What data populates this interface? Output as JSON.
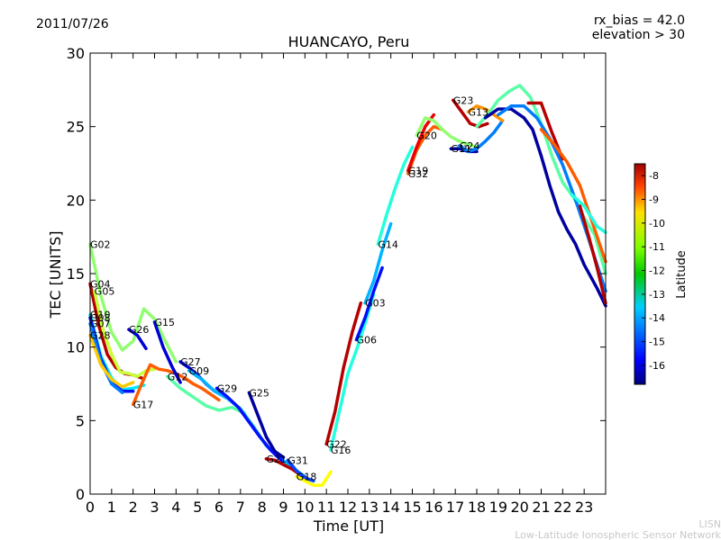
{
  "chart_data": {
    "type": "line",
    "title": "HUANCAYO, Peru",
    "date": "2011/07/26",
    "annotations": [
      "rx_bias = 42.0",
      "elevation > 30"
    ],
    "xlabel": "Time [UT]",
    "ylabel": "TEC [UNITS]",
    "xlim": [
      0,
      24
    ],
    "ylim": [
      0,
      30
    ],
    "xticks": [
      "0",
      "1",
      "2",
      "3",
      "4",
      "5",
      "6",
      "7",
      "8",
      "9",
      "10",
      "11",
      "12",
      "13",
      "14",
      "15",
      "16",
      "17",
      "18",
      "19",
      "20",
      "21",
      "22",
      "23"
    ],
    "yticks": [
      "0",
      "5",
      "10",
      "15",
      "20",
      "25",
      "30"
    ],
    "colorbar": {
      "label": "Latitude",
      "range": [
        -16.8,
        -7.5
      ],
      "ticks": [
        "-8",
        "-9",
        "-10",
        "-11",
        "-12",
        "-13",
        "-14",
        "-15",
        "-16"
      ]
    },
    "footer": [
      "LISN",
      "Low-Latitude Ionospheric Sensor Network"
    ],
    "series": [
      {
        "name": "G02",
        "lat": -12.0,
        "x": [
          0,
          0.5,
          1,
          1.5,
          2,
          2.5,
          3,
          3.5,
          4
        ],
        "y": [
          17.0,
          13.5,
          11.0,
          9.8,
          10.4,
          12.6,
          11.9,
          10.4,
          9.0
        ]
      },
      {
        "name": "G04",
        "lat": -8.0,
        "x": [
          0,
          0.4,
          0.8,
          1.2,
          1.6,
          2,
          2.4
        ],
        "y": [
          14.3,
          11.5,
          9.5,
          8.6,
          8.2,
          8.1,
          7.9
        ]
      },
      {
        "name": "G05",
        "lat": -11.5,
        "x": [
          0.2,
          0.6,
          1.0,
          1.4,
          1.8,
          2.2,
          2.6,
          3.0
        ],
        "y": [
          13.8,
          11.2,
          9.5,
          8.3,
          8.2,
          8.0,
          8.4,
          8.5
        ]
      },
      {
        "name": "G10",
        "lat": -13.5,
        "x": [
          0,
          0.5,
          1,
          1.5,
          2,
          2.5
        ],
        "y": [
          12.2,
          9.4,
          7.9,
          7.1,
          7.2,
          7.4
        ]
      },
      {
        "name": "G08",
        "lat": -15.5,
        "x": [
          0,
          0.5,
          1,
          1.5,
          2
        ],
        "y": [
          12.0,
          9.2,
          7.6,
          7.0,
          7.0
        ]
      },
      {
        "name": "G07",
        "lat": -14.5,
        "x": [
          0,
          0.5,
          1,
          1.5
        ],
        "y": [
          11.6,
          9.0,
          7.5,
          6.9
        ]
      },
      {
        "name": "G28",
        "lat": -10.5,
        "x": [
          0,
          0.5,
          1,
          1.5,
          2
        ],
        "y": [
          10.8,
          8.8,
          7.8,
          7.3,
          7.6
        ]
      },
      {
        "name": "G26",
        "lat": -16.0,
        "x": [
          1.8,
          2.2,
          2.6
        ],
        "y": [
          11.2,
          10.8,
          9.9
        ]
      },
      {
        "name": "G17",
        "lat": -9.5,
        "x": [
          2,
          2.4,
          2.8,
          3.2,
          3.6,
          4.0,
          4.4,
          4.8,
          5.2,
          5.6,
          6.0
        ],
        "y": [
          6.1,
          7.5,
          8.8,
          8.5,
          8.4,
          8.2,
          7.9,
          7.5,
          7.2,
          6.8,
          6.4
        ]
      },
      {
        "name": "G15",
        "lat": -16.0,
        "x": [
          3.0,
          3.4,
          3.8,
          4.2
        ],
        "y": [
          11.7,
          10.0,
          8.7,
          7.6
        ]
      },
      {
        "name": "G27",
        "lat": -16.0,
        "x": [
          4.2,
          4.6,
          5.0,
          5.4,
          5.8
        ],
        "y": [
          9.0,
          8.6,
          8.1,
          7.5,
          7.0
        ]
      },
      {
        "name": "G12",
        "lat": -12.5,
        "x": [
          3.6,
          4.2,
          4.8,
          5.4,
          6.0,
          6.6,
          7.2
        ],
        "y": [
          8.0,
          7.2,
          6.6,
          6.0,
          5.7,
          5.9,
          5.5
        ]
      },
      {
        "name": "G09",
        "lat": -14.0,
        "x": [
          4.6,
          5.2,
          5.8,
          6.4,
          7.0,
          7.6,
          8.2,
          8.8,
          9.4,
          10.0
        ],
        "y": [
          8.4,
          7.8,
          7.0,
          6.5,
          5.8,
          4.6,
          3.3,
          2.5,
          1.8,
          1.2
        ]
      },
      {
        "name": "G29",
        "lat": -15.5,
        "x": [
          5.9,
          6.4,
          6.9,
          7.4,
          7.9,
          8.4,
          8.9
        ],
        "y": [
          7.2,
          6.6,
          5.9,
          4.9,
          3.9,
          3.0,
          2.3
        ]
      },
      {
        "name": "G25",
        "lat": -16.5,
        "x": [
          7.4,
          7.8,
          8.2,
          8.6,
          9.0
        ],
        "y": [
          6.9,
          5.4,
          3.9,
          2.9,
          2.5
        ]
      },
      {
        "name": "G21",
        "lat": -8.0,
        "x": [
          8.2,
          8.6,
          9.0,
          9.4,
          9.8,
          10.2
        ],
        "y": [
          2.4,
          2.3,
          2.0,
          1.7,
          1.3,
          1.0
        ]
      },
      {
        "name": "G31",
        "lat": -15.0,
        "x": [
          9.2,
          9.6,
          10.0,
          10.4
        ],
        "y": [
          2.3,
          1.6,
          1.1,
          0.9
        ]
      },
      {
        "name": "G18",
        "lat": -11.0,
        "x": [
          9.6,
          10.0,
          10.4,
          10.8,
          11.2
        ],
        "y": [
          1.2,
          0.9,
          0.6,
          0.6,
          1.5
        ]
      },
      {
        "name": "G22",
        "lat": -8.0,
        "x": [
          11.0,
          11.4,
          11.8,
          12.2,
          12.6
        ],
        "y": [
          3.4,
          5.6,
          8.6,
          11.0,
          13.0
        ]
      },
      {
        "name": "G16",
        "lat": -13.0,
        "x": [
          11.2,
          11.6,
          12.0,
          12.4,
          12.8,
          13.2
        ],
        "y": [
          3.0,
          5.6,
          8.2,
          9.8,
          11.6,
          13.6
        ]
      },
      {
        "name": "G06",
        "lat": -15.5,
        "x": [
          12.4,
          12.8,
          13.2,
          13.6
        ],
        "y": [
          10.5,
          12.0,
          13.8,
          15.4
        ]
      },
      {
        "name": "G03",
        "lat": -14.0,
        "x": [
          12.8,
          13.2,
          13.6,
          14.0
        ],
        "y": [
          13.0,
          14.5,
          16.6,
          18.4
        ]
      },
      {
        "name": "G14",
        "lat": -13.0,
        "x": [
          13.4,
          13.8,
          14.2,
          14.6,
          15.0
        ],
        "y": [
          17.0,
          19.0,
          20.8,
          22.4,
          23.6
        ]
      },
      {
        "name": "G32",
        "lat": -9.5,
        "x": [
          14.8,
          15.2,
          15.6,
          16.0,
          16.4
        ],
        "y": [
          21.8,
          23.4,
          24.4,
          25.0,
          24.8
        ]
      },
      {
        "name": "G19",
        "lat": -8.5,
        "x": [
          14.8,
          15.2,
          15.6,
          16.0
        ],
        "y": [
          22.0,
          23.6,
          25.0,
          25.8
        ]
      },
      {
        "name": "G20",
        "lat": -12.0,
        "x": [
          15.2,
          15.6,
          16.0,
          16.4,
          16.8,
          17.2,
          17.6,
          18.0
        ],
        "y": [
          24.4,
          25.6,
          25.4,
          24.8,
          24.3,
          24.0,
          23.8,
          23.6
        ]
      },
      {
        "name": "G11",
        "lat": -16.5,
        "x": [
          16.8,
          17.2,
          17.6,
          18.0
        ],
        "y": [
          23.5,
          23.5,
          23.3,
          23.3
        ]
      },
      {
        "name": "G24",
        "lat": -14.5,
        "x": [
          17.2,
          17.6,
          18.0,
          18.4,
          18.8,
          19.2
        ],
        "y": [
          23.7,
          23.3,
          23.5,
          24.0,
          24.6,
          25.4
        ]
      },
      {
        "name": "G23",
        "lat": -8.0,
        "x": [
          16.9,
          17.3,
          17.7,
          18.1,
          18.5
        ],
        "y": [
          26.8,
          26.0,
          25.2,
          25.0,
          25.2
        ]
      },
      {
        "name": "G13",
        "lat": -10.0,
        "x": [
          17.6,
          18.0,
          18.4,
          18.8,
          19.2
        ],
        "y": [
          26.0,
          26.4,
          26.2,
          25.8,
          25.4
        ]
      },
      {
        "name": "",
        "lat": -12.5,
        "x": [
          18.0,
          18.5,
          19.0,
          19.5,
          20.0,
          20.5,
          21.0,
          21.5,
          22.0,
          22.5,
          23.0,
          23.5,
          24.0
        ],
        "y": [
          25.0,
          25.8,
          26.8,
          27.4,
          27.8,
          27.0,
          25.2,
          23.0,
          21.2,
          20.2,
          18.8,
          17.6,
          15.0
        ]
      },
      {
        "name": "",
        "lat": -16.5,
        "x": [
          18.4,
          19.0,
          19.6,
          20.2,
          20.6,
          21.0,
          21.4,
          21.8,
          22.2,
          22.6,
          23.0,
          23.6,
          24.0
        ],
        "y": [
          25.6,
          26.2,
          26.2,
          25.6,
          24.8,
          23.0,
          21.0,
          19.2,
          18.0,
          17.0,
          15.6,
          14.0,
          12.8
        ]
      },
      {
        "name": "",
        "lat": -14.5,
        "x": [
          19.0,
          19.6,
          20.2,
          20.8,
          21.4,
          22.0,
          22.6,
          23.2,
          23.6,
          24.0
        ],
        "y": [
          25.8,
          26.4,
          26.4,
          25.6,
          24.2,
          22.4,
          20.0,
          17.4,
          15.6,
          13.8
        ]
      },
      {
        "name": "",
        "lat": -8.0,
        "x": [
          20.4,
          21.0,
          21.5,
          22.0
        ],
        "y": [
          26.6,
          26.6,
          24.6,
          22.8
        ]
      },
      {
        "name": "",
        "lat": -9.5,
        "x": [
          21.0,
          21.6,
          22.2,
          22.8,
          23.4,
          24.0
        ],
        "y": [
          24.8,
          23.8,
          22.6,
          21.0,
          18.4,
          15.8
        ]
      },
      {
        "name": "",
        "lat": -13.0,
        "x": [
          22.4,
          23.0,
          23.6,
          24.0
        ],
        "y": [
          20.4,
          19.6,
          18.2,
          17.8
        ]
      },
      {
        "name": "",
        "lat": -8.0,
        "x": [
          22.8,
          23.2,
          23.6,
          24.0
        ],
        "y": [
          19.6,
          17.6,
          15.4,
          13.0
        ]
      }
    ]
  }
}
